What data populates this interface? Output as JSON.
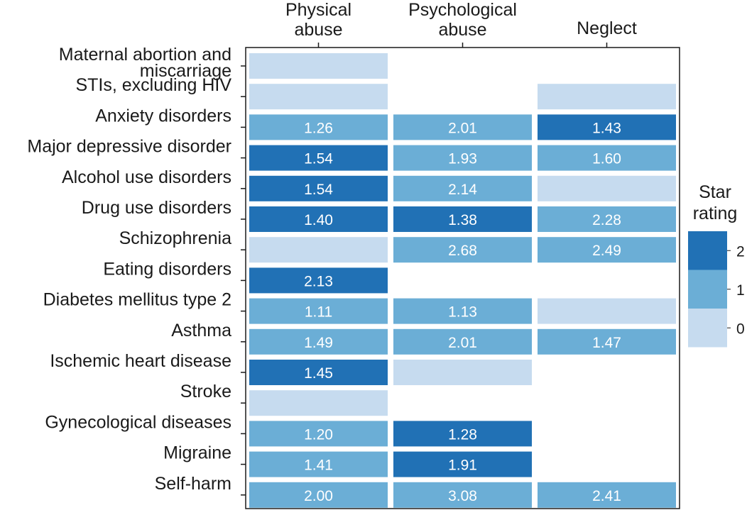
{
  "chart_data": {
    "type": "heatmap",
    "columns": [
      "Physical abuse",
      "Psychological abuse",
      "Neglect"
    ],
    "column_label_lines": [
      [
        "Physical",
        "abuse"
      ],
      [
        "Psychological",
        "abuse"
      ],
      [
        "Neglect"
      ]
    ],
    "rows": [
      "Maternal abortion and miscarriage",
      "STIs, excluding HIV",
      "Anxiety disorders",
      "Major depressive disorder",
      "Alcohol use disorders",
      "Drug use disorders",
      "Schizophrenia",
      "Eating disorders",
      "Diabetes mellitus type 2",
      "Asthma",
      "Ischemic heart disease",
      "Stroke",
      "Gynecological diseases",
      "Migraine",
      "Self-harm"
    ],
    "row_label_lines": [
      [
        "Maternal abortion and",
        "miscarriage"
      ],
      [
        "STIs, excluding HIV"
      ],
      [
        "Anxiety disorders"
      ],
      [
        "Major depressive disorder"
      ],
      [
        "Alcohol use disorders"
      ],
      [
        "Drug use disorders"
      ],
      [
        "Schizophrenia"
      ],
      [
        "Eating disorders"
      ],
      [
        "Diabetes mellitus type 2"
      ],
      [
        "Asthma"
      ],
      [
        "Ischemic heart disease"
      ],
      [
        "Stroke"
      ],
      [
        "Gynecological diseases"
      ],
      [
        "Migraine"
      ],
      [
        "Self-harm"
      ]
    ],
    "star_ratings": [
      [
        0,
        null,
        null
      ],
      [
        0,
        null,
        0
      ],
      [
        1,
        1,
        2
      ],
      [
        2,
        1,
        1
      ],
      [
        2,
        1,
        0
      ],
      [
        2,
        2,
        1
      ],
      [
        0,
        1,
        1
      ],
      [
        2,
        null,
        null
      ],
      [
        1,
        1,
        0
      ],
      [
        1,
        1,
        1
      ],
      [
        2,
        0,
        null
      ],
      [
        0,
        null,
        null
      ],
      [
        1,
        2,
        null
      ],
      [
        1,
        2,
        null
      ],
      [
        1,
        1,
        1
      ]
    ],
    "values": [
      [
        "",
        "",
        ""
      ],
      [
        "",
        "",
        ""
      ],
      [
        "1.26",
        "2.01",
        "1.43"
      ],
      [
        "1.54",
        "1.93",
        "1.60"
      ],
      [
        "1.54",
        "2.14",
        ""
      ],
      [
        "1.40",
        "1.38",
        "2.28"
      ],
      [
        "",
        "2.68",
        "2.49"
      ],
      [
        "2.13",
        "",
        ""
      ],
      [
        "1.11",
        "1.13",
        ""
      ],
      [
        "1.49",
        "2.01",
        "1.47"
      ],
      [
        "1.45",
        "",
        ""
      ],
      [
        "",
        "",
        ""
      ],
      [
        "1.20",
        "1.28",
        ""
      ],
      [
        "1.41",
        "1.91",
        ""
      ],
      [
        "2.00",
        "3.08",
        "2.41"
      ]
    ],
    "legend": {
      "title_lines": [
        "Star",
        "rating"
      ],
      "levels": [
        {
          "label": "2",
          "rating": 2
        },
        {
          "label": "1",
          "rating": 1
        },
        {
          "label": "0",
          "rating": 0
        }
      ],
      "placement": "right"
    },
    "colors": {
      "rating_0": "#c6dbef",
      "rating_1": "#6baed6",
      "rating_2": "#2171b5",
      "axis": "#1a1a1a",
      "cell_text": "#ffffff"
    }
  }
}
